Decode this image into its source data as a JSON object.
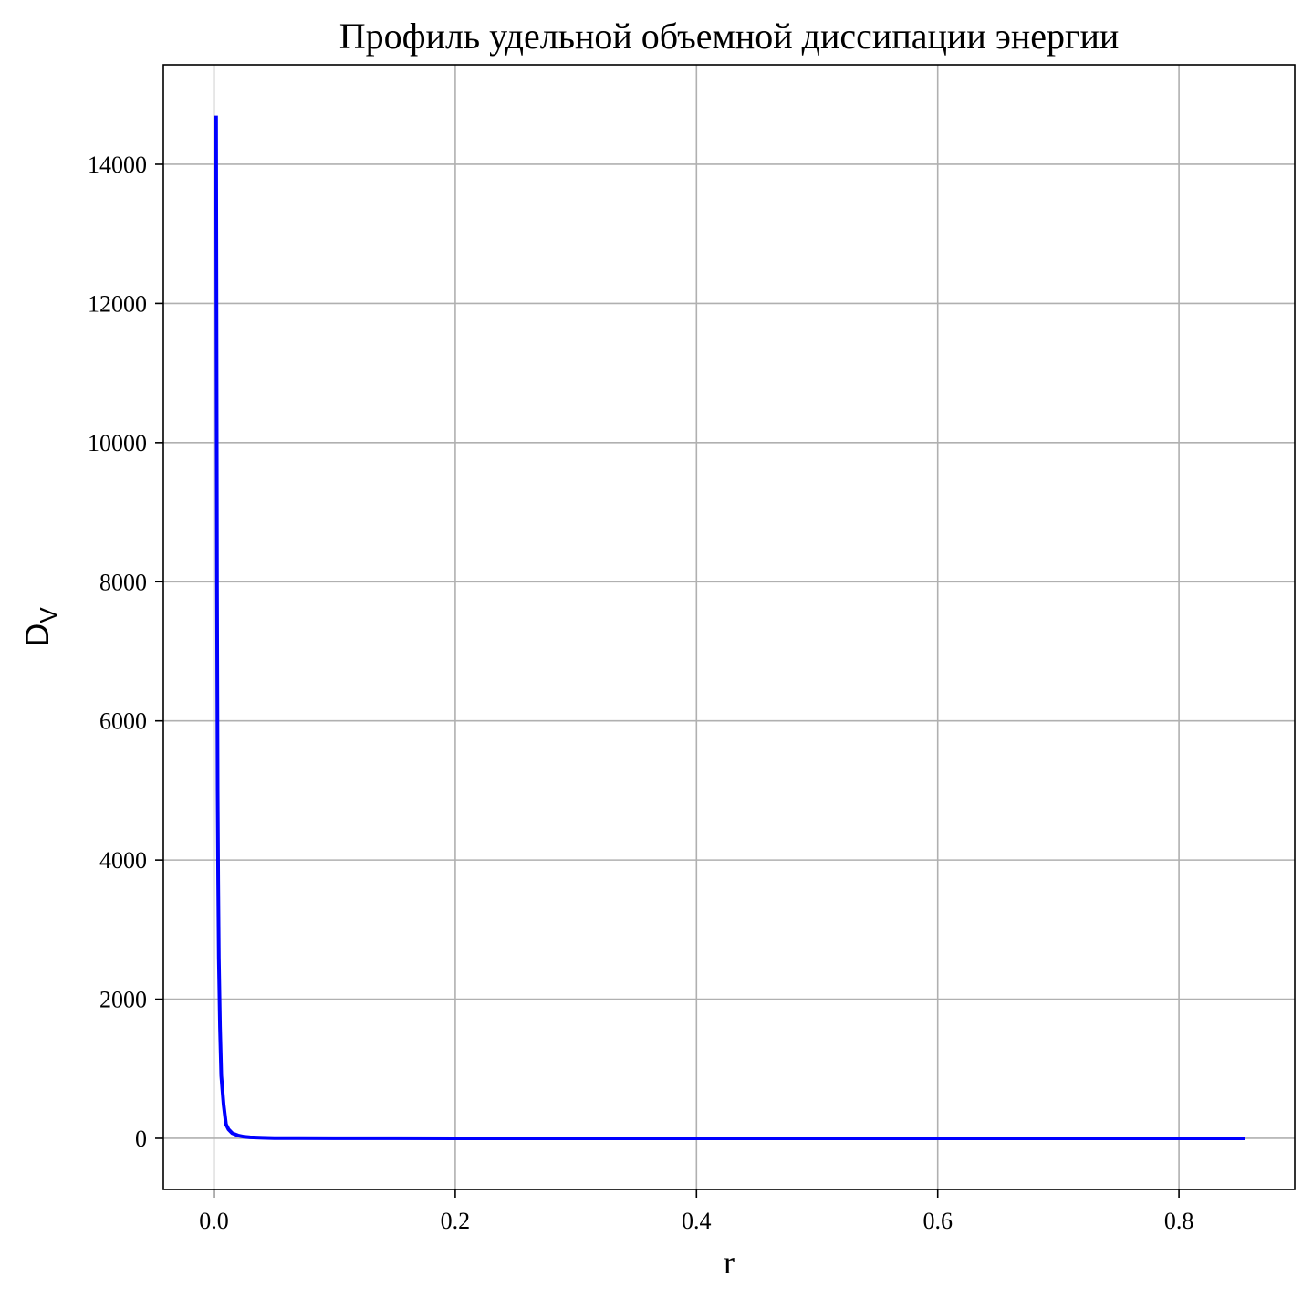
{
  "chart_data": {
    "type": "line",
    "title": "Профиль удельной объемной диссипации энергии",
    "xlabel": "r",
    "ylabel_main": "D",
    "ylabel_sub": "V",
    "xlim": [
      -0.042,
      0.896
    ],
    "ylim": [
      -735,
      15430
    ],
    "x_ticks": [
      0.0,
      0.2,
      0.4,
      0.6,
      0.8
    ],
    "x_tick_labels": [
      "0.0",
      "0.2",
      "0.4",
      "0.6",
      "0.8"
    ],
    "y_ticks": [
      0,
      2000,
      4000,
      6000,
      8000,
      10000,
      12000,
      14000
    ],
    "y_tick_labels": [
      "0",
      "2000",
      "4000",
      "6000",
      "8000",
      "10000",
      "12000",
      "14000"
    ],
    "grid": true,
    "line_color": "#0000ff",
    "series": [
      {
        "x": [
          0.0017,
          0.0025,
          0.003,
          0.0035,
          0.004,
          0.005,
          0.006,
          0.008,
          0.01,
          0.012,
          0.015,
          0.02,
          0.025,
          0.03,
          0.04,
          0.05,
          0.07,
          0.1,
          0.15,
          0.2,
          0.3,
          0.4,
          0.5,
          0.6,
          0.7,
          0.8,
          0.855
        ],
        "y": [
          14700,
          8000,
          5000,
          3700,
          2600,
          1600,
          900,
          480,
          200,
          130,
          75,
          40,
          22,
          14,
          7,
          4,
          2,
          1,
          0.5,
          0.3,
          0.1,
          0.05,
          0.03,
          0.02,
          0.01,
          0.01,
          0.01
        ]
      }
    ]
  }
}
